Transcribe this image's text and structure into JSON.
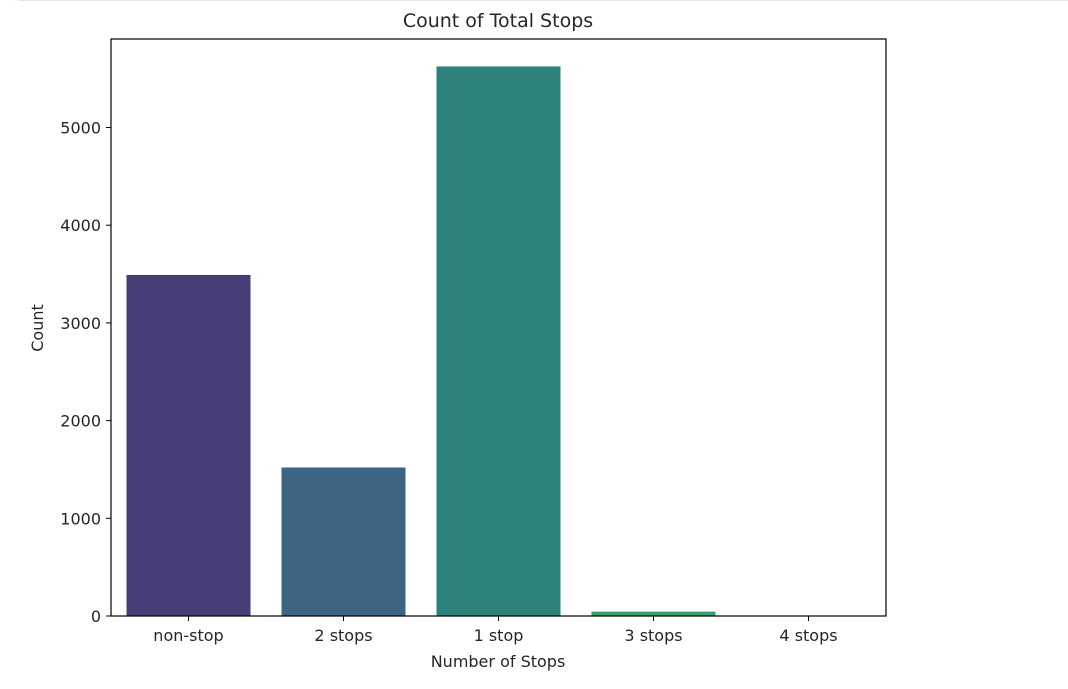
{
  "chart_data": {
    "type": "bar",
    "title": "Count of Total Stops",
    "xlabel": "Number of Stops",
    "ylabel": "Count",
    "categories": [
      "non-stop",
      "2 stops",
      "1 stop",
      "3 stops",
      "4 stops"
    ],
    "values": [
      3491,
      1520,
      5625,
      45,
      1
    ],
    "colors": [
      "#483d77",
      "#3d6482",
      "#2d837b",
      "#38a26d",
      "#5cb85a"
    ],
    "ylim": [
      0,
      5906
    ],
    "yticks": [
      0,
      1000,
      2000,
      3000,
      4000,
      5000
    ],
    "grid": false,
    "legend": null
  }
}
